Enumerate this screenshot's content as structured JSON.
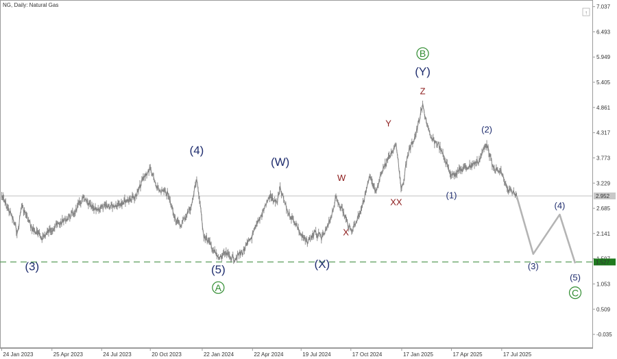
{
  "chart_data": {
    "type": "line",
    "title": "NG, Daily:  Natural Gas",
    "symbol": "NG",
    "timeframe": "Daily",
    "instrument": "Natural Gas",
    "x_ticks": [
      "24 Jan 2023",
      "25 Apr 2023",
      "24 Jul 2023",
      "20 Oct 2023",
      "22 Jan 2024",
      "22 Apr 2024",
      "19 Jul 2024",
      "17 Oct 2024",
      "17 Jan 2025",
      "17 Apr 2025",
      "17 Jul 2025"
    ],
    "y_ticks": [
      "7.037",
      "6.493",
      "5.949",
      "5.405",
      "4.861",
      "4.317",
      "3.773",
      "3.229",
      "2.685",
      "2.141",
      "1.597",
      "1.053",
      "0.509",
      "-0.035"
    ],
    "ylim": [
      -0.3,
      7.15
    ],
    "current_price": "2.952",
    "support_level": "1.527",
    "colors": {
      "price": "#808080",
      "projection": "#b4b4b4",
      "support": "#5a9e5a",
      "support_label_bg": "#1f7a1f",
      "current_line": "#c0c0c0",
      "current_label_bg": "#c8c8c8",
      "wave_primary": "#1f2d6e",
      "wave_minor": "#8b1a1a",
      "wave_cycle": "#2e8b2e"
    },
    "price_series": {
      "name": "",
      "x": [
        "2023-01-24",
        "2023-02-10",
        "2023-02-22",
        "2023-03-01",
        "2023-03-20",
        "2023-04-07",
        "2023-04-25",
        "2023-05-15",
        "2023-06-05",
        "2023-06-20",
        "2023-07-10",
        "2023-07-24",
        "2023-08-15",
        "2023-09-05",
        "2023-09-25",
        "2023-10-06",
        "2023-10-20",
        "2023-11-01",
        "2023-11-20",
        "2023-12-05",
        "2023-12-13",
        "2024-01-03",
        "2024-01-12",
        "2024-01-17",
        "2024-01-25",
        "2024-02-06",
        "2024-02-20",
        "2024-03-04",
        "2024-03-20",
        "2024-04-05",
        "2024-04-22",
        "2024-05-10",
        "2024-05-23",
        "2024-06-05",
        "2024-06-11",
        "2024-06-25",
        "2024-07-10",
        "2024-07-19",
        "2024-07-29",
        "2024-08-12",
        "2024-08-26",
        "2024-09-06",
        "2024-09-20",
        "2024-09-30",
        "2024-10-08",
        "2024-10-17",
        "2024-10-25",
        "2024-11-08",
        "2024-11-20",
        "2024-12-02",
        "2024-12-12",
        "2024-12-24",
        "2025-01-07",
        "2025-01-17",
        "2025-01-28",
        "2025-02-12",
        "2025-02-24",
        "2025-03-10",
        "2025-03-25",
        "2025-04-08",
        "2025-04-17",
        "2025-05-01",
        "2025-05-20",
        "2025-06-05",
        "2025-06-20",
        "2025-07-01",
        "2025-07-17",
        "2025-07-28",
        "2025-08-05",
        "2025-08-13"
      ],
      "y": [
        2.95,
        2.55,
        2.15,
        2.75,
        2.25,
        2.05,
        2.25,
        2.4,
        2.6,
        2.9,
        2.65,
        2.7,
        2.75,
        2.85,
        2.95,
        3.3,
        3.55,
        3.1,
        3.0,
        2.45,
        2.3,
        2.75,
        3.35,
        2.85,
        2.1,
        1.9,
        1.6,
        1.7,
        1.6,
        1.75,
        2.1,
        2.6,
        2.95,
        2.8,
        3.1,
        2.6,
        2.35,
        2.1,
        1.95,
        2.15,
        2.05,
        2.3,
        2.9,
        2.7,
        2.45,
        2.2,
        2.35,
        2.8,
        3.35,
        3.0,
        3.5,
        3.75,
        4.1,
        3.05,
        3.85,
        4.3,
        4.9,
        4.2,
        4.05,
        3.65,
        3.4,
        3.5,
        3.6,
        3.7,
        4.1,
        3.55,
        3.45,
        3.05,
        3.05,
        2.95
      ]
    },
    "projection": {
      "x": [
        "2025-08-13",
        "2025-09-12",
        "2025-10-30",
        "2025-11-27"
      ],
      "y": [
        2.95,
        1.7,
        2.55,
        1.5
      ]
    },
    "wave_labels": [
      {
        "text": "(3)",
        "x": "2023-03-20",
        "y": 1.35,
        "style": "primary"
      },
      {
        "text": "(4)",
        "x": "2024-01-12",
        "y": 3.85,
        "style": "primary"
      },
      {
        "text": "(5)",
        "x": "2024-02-20",
        "y": 1.28,
        "style": "primary"
      },
      {
        "text": "A",
        "x": "2024-02-20",
        "y": 0.9,
        "style": "cycle"
      },
      {
        "text": "(W)",
        "x": "2024-06-11",
        "y": 3.6,
        "style": "primary"
      },
      {
        "text": "(X)",
        "x": "2024-08-26",
        "y": 1.4,
        "style": "primary"
      },
      {
        "text": "W",
        "x": "2024-09-30",
        "y": 3.28,
        "style": "minor"
      },
      {
        "text": "X",
        "x": "2024-10-08",
        "y": 2.1,
        "style": "minor"
      },
      {
        "text": "Y",
        "x": "2024-12-24",
        "y": 4.45,
        "style": "minor"
      },
      {
        "text": "XX",
        "x": "2025-01-07",
        "y": 2.75,
        "style": "minor"
      },
      {
        "text": "Z",
        "x": "2025-02-24",
        "y": 5.15,
        "style": "minor"
      },
      {
        "text": "(Y)",
        "x": "2025-02-24",
        "y": 5.55,
        "style": "primary"
      },
      {
        "text": "B",
        "x": "2025-02-24",
        "y": 5.95,
        "style": "cycle"
      },
      {
        "text": "(1)",
        "x": "2025-04-17",
        "y": 2.9,
        "style": "primary-small"
      },
      {
        "text": "(2)",
        "x": "2025-06-20",
        "y": 4.32,
        "style": "primary-small"
      },
      {
        "text": "(3)",
        "x": "2025-09-12",
        "y": 1.37,
        "style": "primary-small"
      },
      {
        "text": "(4)",
        "x": "2025-10-30",
        "y": 2.68,
        "style": "primary-small"
      },
      {
        "text": "(5)",
        "x": "2025-11-27",
        "y": 1.13,
        "style": "primary-small"
      },
      {
        "text": "C",
        "x": "2025-11-27",
        "y": 0.79,
        "style": "cycle"
      }
    ]
  }
}
